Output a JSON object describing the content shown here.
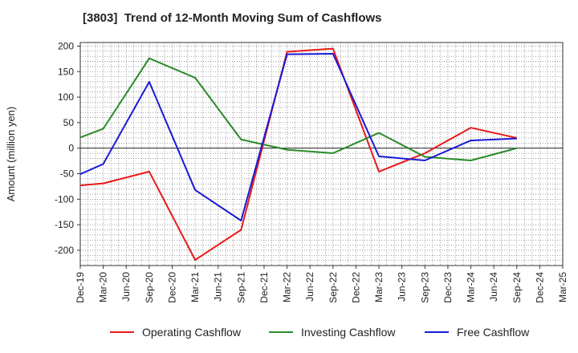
{
  "chart_data": {
    "type": "line",
    "title": "[3803]  Trend of 12-Month Moving Sum of Cashflows",
    "xlabel": "",
    "ylabel": "Amount (million yen)",
    "categories": [
      "Dec-19",
      "Mar-20",
      "Jun-20",
      "Sep-20",
      "Dec-20",
      "Mar-21",
      "Jun-21",
      "Sep-21",
      "Dec-21",
      "Mar-22",
      "Jun-22",
      "Sep-22",
      "Dec-22",
      "Mar-23",
      "Jun-23",
      "Sep-23",
      "Dec-23",
      "Mar-24",
      "Jun-24",
      "Sep-24",
      "Dec-24",
      "Mar-25"
    ],
    "ylim": [
      -230,
      207
    ],
    "yticks": [
      200,
      150,
      100,
      50,
      0,
      -50,
      -100,
      -150,
      -200
    ],
    "grid": true,
    "legend_position": "bottom",
    "series": [
      {
        "name": "Operating Cashflow",
        "color": "#e8191a",
        "values": [
          -73,
          -69,
          null,
          -46,
          null,
          -219,
          null,
          -160,
          null,
          189,
          null,
          195,
          null,
          -46,
          null,
          -10,
          null,
          40,
          null,
          20,
          null,
          null
        ]
      },
      {
        "name": "Investing Cashflow",
        "color": "#2a8a2a",
        "values": [
          21,
          38,
          null,
          176,
          null,
          138,
          null,
          17,
          null,
          -3,
          null,
          -10,
          null,
          30,
          null,
          -17,
          null,
          -24,
          null,
          0,
          null,
          null
        ]
      },
      {
        "name": "Free Cashflow",
        "color": "#1a1ad6",
        "values": [
          -51,
          -31,
          null,
          130,
          null,
          -82,
          null,
          -142,
          null,
          184,
          null,
          185,
          null,
          -16,
          null,
          -24,
          null,
          15,
          null,
          19,
          null,
          null
        ]
      }
    ]
  }
}
